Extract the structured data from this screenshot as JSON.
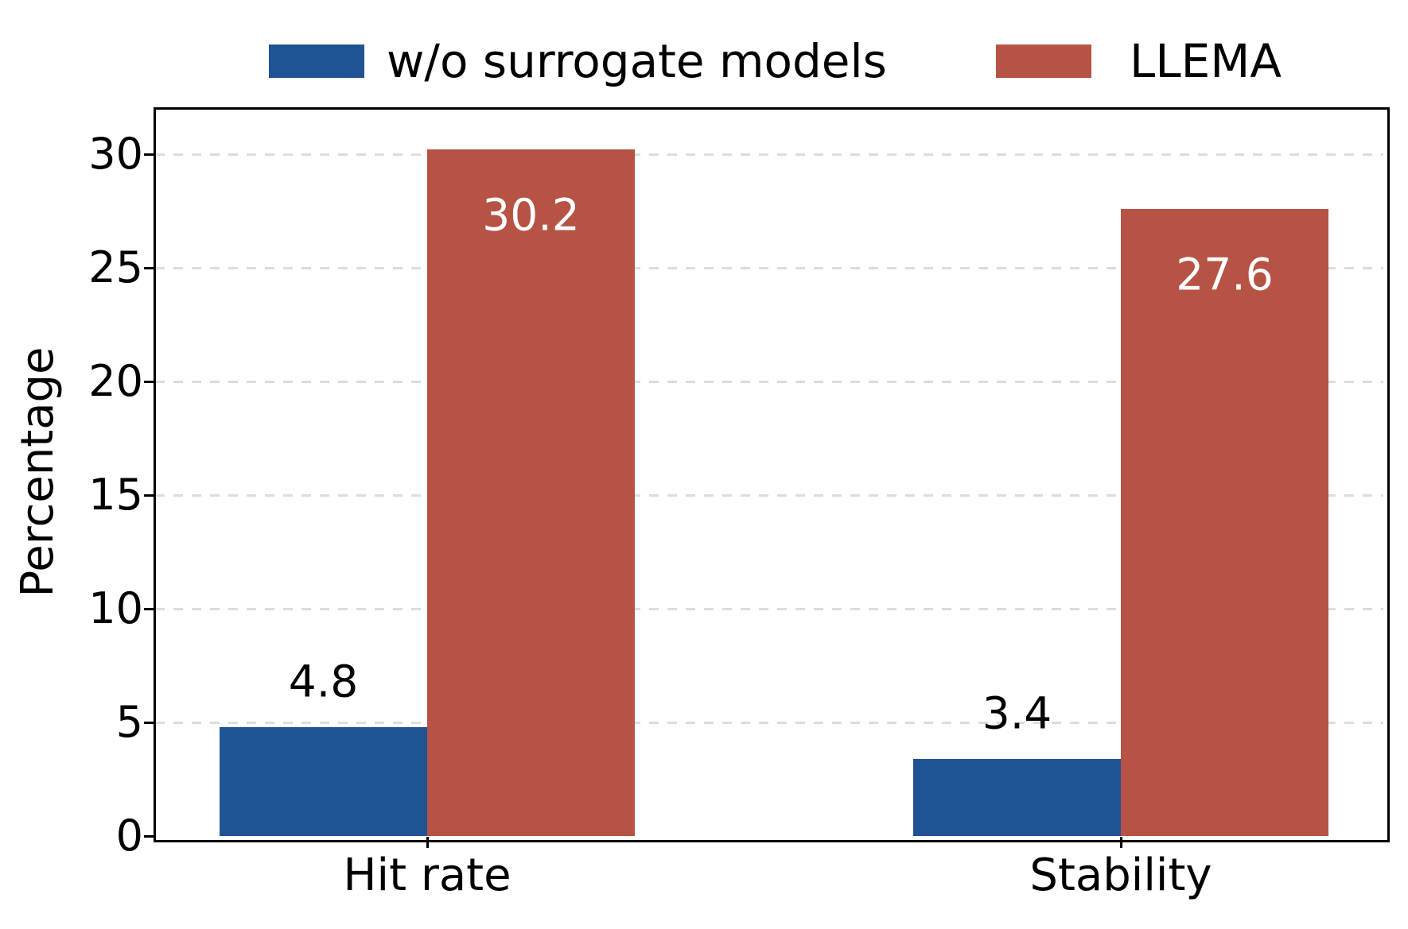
{
  "chart": {
    "ylabel": "Percentage",
    "legend": {
      "items": [
        {
          "label": "w/o surrogate models",
          "color": "#1F5393"
        },
        {
          "label": "LLEMA",
          "color": "#B65345"
        }
      ]
    }
  },
  "chart_data": {
    "type": "bar",
    "categories": [
      "Hit rate",
      "Stability"
    ],
    "series": [
      {
        "name": "w/o surrogate models",
        "color": "#1F5393",
        "values": [
          4.8,
          3.4
        ],
        "labels": [
          "4.8",
          "3.4"
        ],
        "label_placement": "above",
        "label_color": "#000000"
      },
      {
        "name": "LLEMA",
        "color": "#B65345",
        "values": [
          30.2,
          27.6
        ],
        "labels": [
          "30.2",
          "27.6"
        ],
        "label_placement": "inside-top",
        "label_color": "#ffffff"
      }
    ],
    "title": "",
    "xlabel": "",
    "ylabel": "Percentage",
    "ylim": [
      0,
      32
    ],
    "yticks": [
      0,
      5,
      10,
      15,
      20,
      25,
      30
    ],
    "grid": {
      "axis": "y",
      "style": "dashed",
      "color": "#dcdcdc"
    },
    "legend_position": "top-center",
    "axis_color": "#000000",
    "background": "#ffffff"
  }
}
